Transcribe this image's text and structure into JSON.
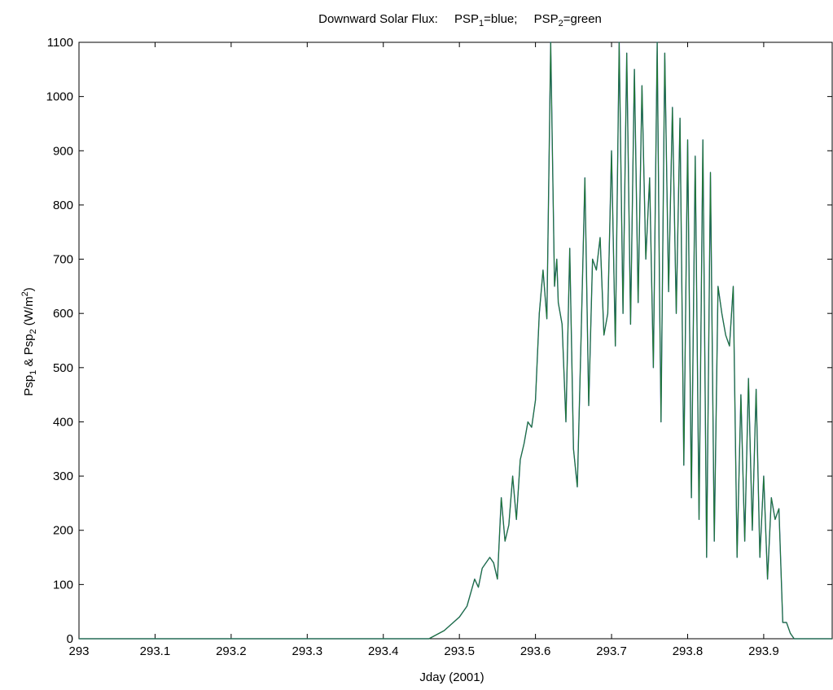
{
  "chart_data": {
    "type": "line",
    "title": {
      "prefix": "Downward Solar Flux:",
      "s1_name": "PSP",
      "s1_sub": "1",
      "s1_rest": "=blue;",
      "s2_name": "PSP",
      "s2_sub": "2",
      "s2_rest": "=green"
    },
    "xlabel": "Jday (2001)",
    "ylabel": {
      "a": "Psp",
      "a_sub": "1",
      "mid": " & Psp",
      "b_sub": "2",
      "unit_open": " (W/m",
      "unit_sup": "2",
      "unit_close": ")"
    },
    "xlim": [
      293,
      293.99
    ],
    "ylim": [
      0,
      1100
    ],
    "xticks": [
      "293",
      "293.1",
      "293.2",
      "293.3",
      "293.4",
      "293.5",
      "293.6",
      "293.7",
      "293.8",
      "293.9"
    ],
    "yticks": [
      "0",
      "100",
      "200",
      "300",
      "400",
      "500",
      "600",
      "700",
      "800",
      "900",
      "1000",
      "1100"
    ],
    "series": [
      {
        "name": "PSP1",
        "color": "#2a4fa8",
        "x": [
          293.0,
          293.46,
          293.48,
          293.5,
          293.51,
          293.52,
          293.525,
          293.53,
          293.54,
          293.545,
          293.55,
          293.555,
          293.56,
          293.565,
          293.57,
          293.575,
          293.58,
          293.585,
          293.59,
          293.595,
          293.6,
          293.605,
          293.61,
          293.615,
          293.62,
          293.625,
          293.628,
          293.63,
          293.635,
          293.64,
          293.645,
          293.65,
          293.655,
          293.66,
          293.665,
          293.67,
          293.675,
          293.68,
          293.685,
          293.69,
          293.695,
          293.7,
          293.705,
          293.71,
          293.713,
          293.715,
          293.72,
          293.725,
          293.73,
          293.735,
          293.74,
          293.745,
          293.75,
          293.755,
          293.76,
          293.763,
          293.765,
          293.77,
          293.775,
          293.78,
          293.785,
          293.79,
          293.795,
          293.8,
          293.805,
          293.81,
          293.815,
          293.82,
          293.825,
          293.83,
          293.835,
          293.84,
          293.845,
          293.85,
          293.855,
          293.86,
          293.865,
          293.87,
          293.875,
          293.88,
          293.885,
          293.89,
          293.895,
          293.9,
          293.905,
          293.91,
          293.915,
          293.92,
          293.925,
          293.93,
          293.935,
          293.94,
          293.945,
          293.95,
          293.955,
          293.96,
          293.965,
          293.97,
          293.975,
          293.98,
          293.985,
          293.99
        ],
        "values": [
          0,
          0,
          15,
          40,
          60,
          110,
          95,
          130,
          150,
          140,
          110,
          260,
          180,
          210,
          300,
          220,
          330,
          360,
          400,
          390,
          440,
          600,
          680,
          590,
          1100,
          650,
          700,
          620,
          580,
          400,
          720,
          350,
          280,
          560,
          850,
          430,
          700,
          680,
          740,
          560,
          600,
          900,
          540,
          1100,
          800,
          600,
          1080,
          580,
          1050,
          620,
          1020,
          700,
          850,
          500,
          1100,
          650,
          400,
          1080,
          640,
          980,
          600,
          960,
          320,
          920,
          260,
          890,
          220,
          920,
          150,
          860,
          180,
          650,
          600,
          560,
          540,
          650,
          150,
          450,
          180,
          480,
          200,
          460,
          150,
          300,
          110,
          260,
          220,
          240,
          30,
          30,
          10,
          0,
          0,
          0,
          0,
          0,
          0,
          0,
          0,
          0,
          0,
          0
        ]
      },
      {
        "name": "PSP2",
        "color": "#1f7a2e",
        "x": [
          293.0,
          293.46,
          293.48,
          293.5,
          293.51,
          293.52,
          293.525,
          293.53,
          293.54,
          293.545,
          293.55,
          293.555,
          293.56,
          293.565,
          293.57,
          293.575,
          293.58,
          293.585,
          293.59,
          293.595,
          293.6,
          293.605,
          293.61,
          293.615,
          293.62,
          293.625,
          293.628,
          293.63,
          293.635,
          293.64,
          293.645,
          293.65,
          293.655,
          293.66,
          293.665,
          293.67,
          293.675,
          293.68,
          293.685,
          293.69,
          293.695,
          293.7,
          293.705,
          293.71,
          293.713,
          293.715,
          293.72,
          293.725,
          293.73,
          293.735,
          293.74,
          293.745,
          293.75,
          293.755,
          293.76,
          293.763,
          293.765,
          293.77,
          293.775,
          293.78,
          293.785,
          293.79,
          293.795,
          293.8,
          293.805,
          293.81,
          293.815,
          293.82,
          293.825,
          293.83,
          293.835,
          293.84,
          293.845,
          293.85,
          293.855,
          293.86,
          293.865,
          293.87,
          293.875,
          293.88,
          293.885,
          293.89,
          293.895,
          293.9,
          293.905,
          293.91,
          293.915,
          293.92,
          293.925,
          293.93,
          293.935,
          293.94,
          293.945,
          293.95,
          293.955,
          293.96,
          293.965,
          293.97,
          293.975,
          293.98,
          293.985,
          293.99
        ],
        "values": [
          0,
          0,
          15,
          40,
          60,
          110,
          95,
          130,
          150,
          140,
          110,
          260,
          180,
          210,
          300,
          220,
          330,
          360,
          400,
          390,
          440,
          600,
          680,
          590,
          1100,
          650,
          700,
          620,
          580,
          400,
          720,
          350,
          280,
          560,
          850,
          430,
          700,
          680,
          740,
          560,
          600,
          900,
          540,
          1100,
          800,
          600,
          1080,
          580,
          1050,
          620,
          1020,
          700,
          850,
          500,
          1100,
          650,
          400,
          1080,
          640,
          980,
          600,
          960,
          320,
          920,
          260,
          890,
          220,
          920,
          150,
          860,
          180,
          650,
          600,
          560,
          540,
          650,
          150,
          450,
          180,
          480,
          200,
          460,
          150,
          300,
          110,
          260,
          220,
          240,
          30,
          30,
          10,
          0,
          0,
          0,
          0,
          0,
          0,
          0,
          0,
          0,
          0,
          0
        ]
      }
    ]
  }
}
